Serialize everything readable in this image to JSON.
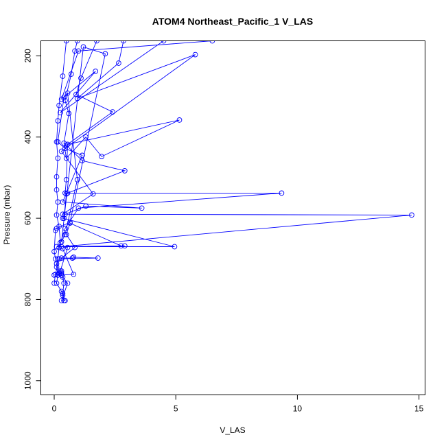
{
  "chart_data": {
    "type": "line",
    "title": "ATOM4 Northeast_Pacific_1 V_LAS",
    "xlabel": "V_LAS",
    "ylabel": "Pressure (mbar)",
    "xlim": [
      -0.55,
      15.25
    ],
    "ylim": [
      1035,
      163
    ],
    "y_reversed": true,
    "xticks": [
      0,
      5,
      10,
      15
    ],
    "yticks": [
      200,
      400,
      600,
      800,
      1000
    ],
    "grid": false,
    "colors": {
      "series": "#0000ff",
      "axes": "#000000",
      "background": "#ffffff"
    },
    "series": [
      {
        "x": [
          0.5,
          0.35,
          0.2,
          0.15,
          0.1,
          0.15,
          0.1,
          0.1,
          0.15,
          0.1,
          0.2,
          0.25,
          0.2,
          0.15,
          0.1,
          0.15,
          0.1,
          0.3,
          0.35,
          0.4
        ],
        "y": [
          163,
          250,
          322,
          360,
          412,
          452,
          498,
          530,
          560,
          592,
          620,
          660,
          672,
          700,
          720,
          740,
          760,
          780,
          790,
          803
        ]
      },
      {
        "x": [
          0.95,
          0.85,
          0.7,
          0.45,
          0.6,
          0.4,
          0.5,
          1.3,
          1.95,
          5.15,
          0.55,
          0.5,
          0.45,
          9.35,
          1.0,
          0.45,
          0.2
        ],
        "y": [
          163,
          188,
          245,
          310,
          342,
          415,
          452,
          400,
          448,
          358,
          418,
          505,
          538,
          538,
          575,
          625,
          672
        ]
      },
      {
        "x": [
          1.75,
          1.1,
          0.9,
          2.4,
          0.5,
          1.15,
          2.9,
          0.55,
          0.5,
          0.4
        ],
        "y": [
          163,
          255,
          295,
          338,
          420,
          458,
          483,
          538,
          540,
          600
        ]
      },
      {
        "x": [
          2.85,
          2.65,
          0.95,
          5.8,
          0.3,
          1.6,
          0.35,
          14.7,
          0.3,
          0.55,
          0.25,
          0.3
        ],
        "y": [
          163,
          218,
          305,
          197,
          435,
          540,
          590,
          592,
          670,
          672,
          730,
          740
        ]
      },
      {
        "x": [
          4.5,
          0.25,
          1.7,
          0.4,
          0.15,
          0.45,
          1.15,
          0.35,
          3.6,
          1.3,
          0.45,
          0.35,
          4.95,
          0.1,
          2.9,
          2.75,
          0.65,
          0.5,
          0.85,
          0.3,
          0.75,
          0.8,
          1.8,
          0.2,
          0.05,
          0.0
        ],
        "y": [
          163,
          340,
          238,
          302,
          412,
          428,
          445,
          560,
          575,
          570,
          590,
          600,
          670,
          670,
          668,
          668,
          612,
          640,
          672,
          698,
          698,
          696,
          698,
          700,
          738,
          760
        ]
      },
      {
        "x": [
          6.5,
          1.0,
          0.3,
          0.55,
          0.95,
          0.45,
          0.3,
          1.2,
          2.1,
          0.65,
          0.1,
          0.05,
          0.0,
          0.05,
          0.1,
          0.2,
          0.15,
          0.3,
          0.0
        ],
        "y": [
          163,
          188,
          307,
          292,
          505,
          640,
          658,
          178,
          195,
          610,
          625,
          630,
          682,
          700,
          712,
          735,
          740,
          735,
          740
        ]
      },
      {
        "x": [
          0.3,
          0.35,
          0.4,
          0.35,
          0.45,
          0.3,
          0.55,
          0.3,
          0.8,
          0.35
        ],
        "y": [
          730,
          745,
          760,
          785,
          803,
          803,
          760,
          740,
          738,
          675
        ]
      }
    ]
  }
}
